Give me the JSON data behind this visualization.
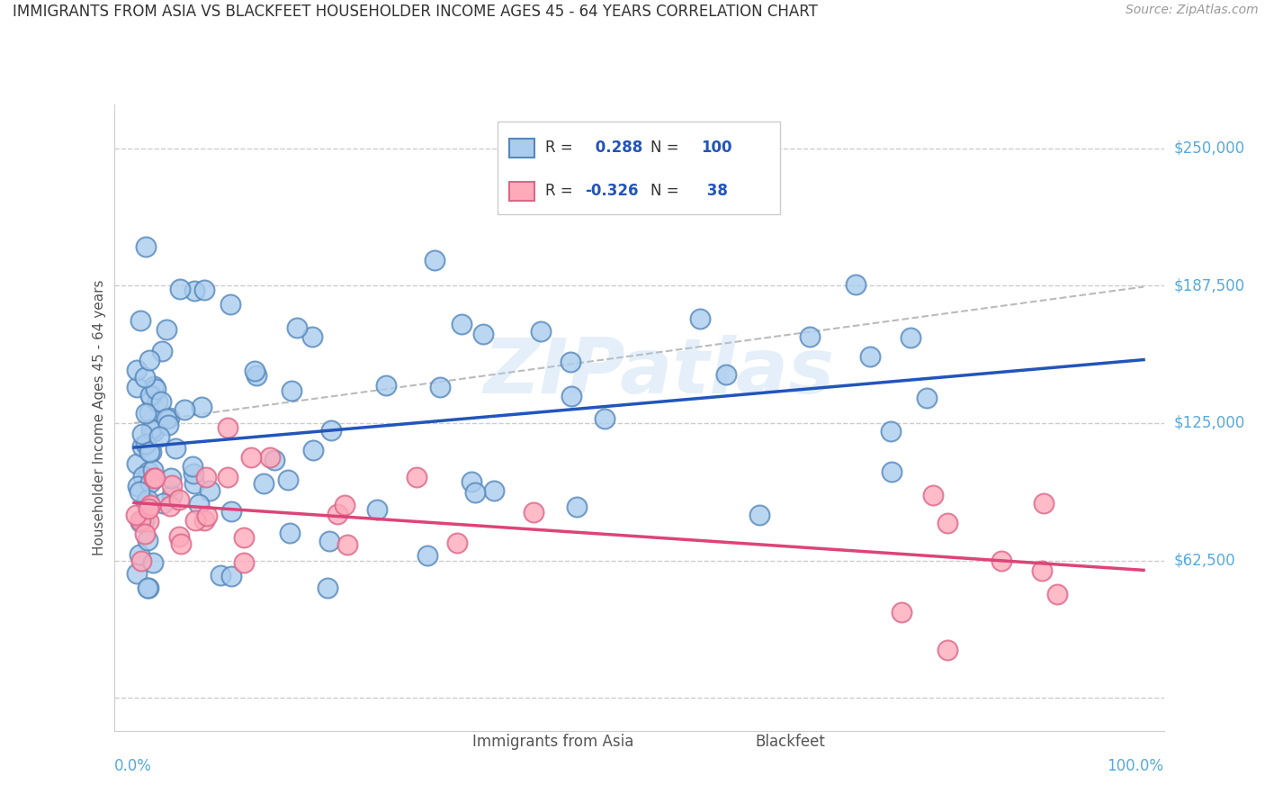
{
  "title": "IMMIGRANTS FROM ASIA VS BLACKFEET HOUSEHOLDER INCOME AGES 45 - 64 YEARS CORRELATION CHART",
  "source": "Source: ZipAtlas.com",
  "ylabel": "Householder Income Ages 45 - 64 years",
  "ytick_values": [
    0,
    62500,
    125000,
    187500,
    250000
  ],
  "ytick_labels": [
    "",
    "$62,500",
    "$125,000",
    "$187,500",
    "$250,000"
  ],
  "ymax": 270000,
  "ymin": -15000,
  "xmin": -2,
  "xmax": 102,
  "legend_label1": "Immigrants from Asia",
  "legend_label2": "Blackfeet",
  "R1_val": "0.288",
  "N1_val": "100",
  "R2_val": "-0.326",
  "N2_val": "38",
  "blue_fill": "#AACCEE",
  "blue_edge": "#5588BB",
  "blue_line": "#2255BB",
  "pink_fill": "#FFAABB",
  "pink_edge": "#DD6688",
  "pink_line": "#DD4477",
  "dash_line": "#BBBBBB",
  "grid_color": "#CCCCCC",
  "axis_blue": "#55AADD",
  "title_color": "#333333",
  "source_color": "#999999",
  "watermark_text": "ZIPatlas",
  "watermark_color": "#AACCEE",
  "watermark_alpha": 0.3,
  "legend_text_dark": "#333333",
  "legend_num_color": "#2255BB",
  "bottom_legend_color": "#555555"
}
